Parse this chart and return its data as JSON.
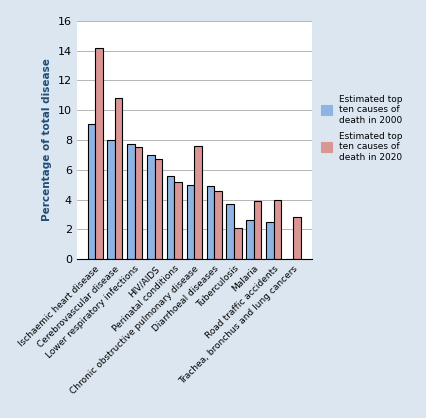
{
  "categories": [
    "Ischaemic heart disease",
    "Cerebrovascular disease",
    "Lower respiratory infections",
    "HIV/AIDS",
    "Perinatal conditions",
    "Chronic obstructive pulmonary disease",
    "Diarrhoeal diseases",
    "Tuberculosis",
    "Malaria",
    "Road traffic accidents",
    "Trachea, bronchus and lung cancers"
  ],
  "values_2000": [
    9.1,
    8.0,
    7.7,
    7.0,
    5.6,
    5.0,
    4.9,
    3.7,
    2.6,
    2.5,
    0.0
  ],
  "values_2020": [
    14.2,
    10.8,
    7.5,
    6.7,
    5.2,
    7.6,
    4.6,
    2.1,
    3.9,
    4.0,
    2.8
  ],
  "color_2000": "#8eb4e3",
  "color_2020": "#da9694",
  "ylabel": "Percentage of total disease",
  "ylim": [
    0,
    16
  ],
  "yticks": [
    0,
    2,
    4,
    6,
    8,
    10,
    12,
    14,
    16
  ],
  "legend_2000": "Estimated top\nten causes of\ndeath in 2000",
  "legend_2020": "Estimated top\nten causes of\ndeath in 2020",
  "background_color": "#dce6f1",
  "plot_background": "#ffffff"
}
